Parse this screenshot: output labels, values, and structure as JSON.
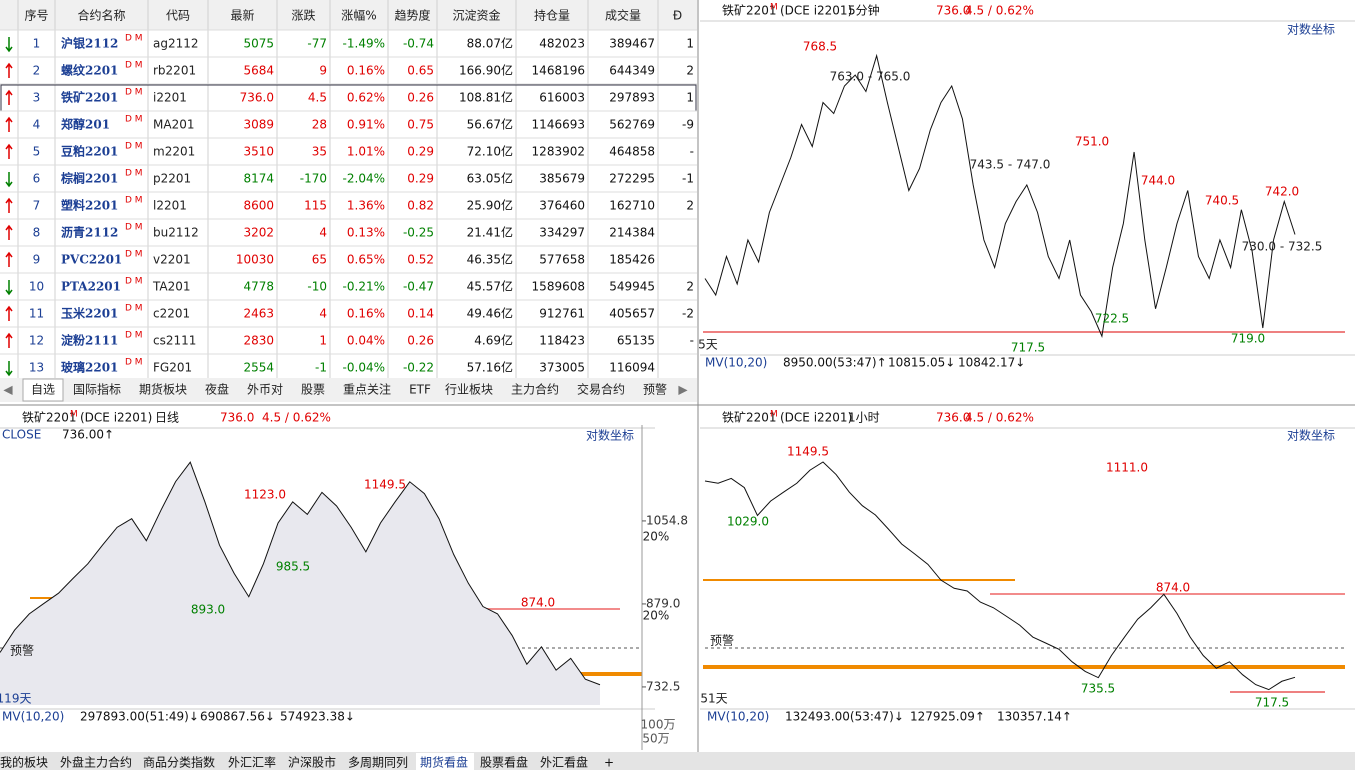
{
  "table": {
    "columns": [
      "序号",
      "合约名称",
      "代码",
      "最新",
      "涨跌",
      "涨幅%",
      "趋势度",
      "沉淀资金",
      "持仓量",
      "成交量",
      "Ð"
    ],
    "badge": "D M",
    "rows": [
      [
        "1",
        "沪银2112",
        "ag2112",
        "5075",
        "-77",
        "-1.49%",
        "-0.74",
        "88.07亿",
        "482023",
        "389467",
        "1"
      ],
      [
        "2",
        "螺纹2201",
        "rb2201",
        "5684",
        "9",
        "0.16%",
        "0.65",
        "166.90亿",
        "1468196",
        "644349",
        "2"
      ],
      [
        "3",
        "铁矿2201",
        "i2201",
        "736.0",
        "4.5",
        "0.62%",
        "0.26",
        "108.81亿",
        "616003",
        "297893",
        "1"
      ],
      [
        "4",
        "郑醇201",
        "MA201",
        "3089",
        "28",
        "0.91%",
        "0.75",
        "56.67亿",
        "1146693",
        "562769",
        "-9"
      ],
      [
        "5",
        "豆粕2201",
        "m2201",
        "3510",
        "35",
        "1.01%",
        "0.29",
        "72.10亿",
        "1283902",
        "464858",
        "-"
      ],
      [
        "6",
        "棕榈2201",
        "p2201",
        "8174",
        "-170",
        "-2.04%",
        "0.29",
        "63.05亿",
        "385679",
        "272295",
        "-1"
      ],
      [
        "7",
        "塑料2201",
        "l2201",
        "8600",
        "115",
        "1.36%",
        "0.82",
        "25.90亿",
        "376460",
        "162710",
        "2"
      ],
      [
        "8",
        "沥青2112",
        "bu2112",
        "3202",
        "4",
        "0.13%",
        "-0.25",
        "21.41亿",
        "334297",
        "214384",
        null
      ],
      [
        "9",
        "PVC2201",
        "v2201",
        "10030",
        "65",
        "0.65%",
        "0.52",
        "46.35亿",
        "577658",
        "185426",
        null
      ],
      [
        "10",
        "PTA2201",
        "TA201",
        "4778",
        "-10",
        "-0.21%",
        "-0.47",
        "45.57亿",
        "1589608",
        "549945",
        "2"
      ],
      [
        "11",
        "玉米2201",
        "c2201",
        "2463",
        "4",
        "0.16%",
        "0.14",
        "49.46亿",
        "912761",
        "405657",
        "-2"
      ],
      [
        "12",
        "淀粉2111",
        "cs2111",
        "2830",
        "1",
        "0.04%",
        "0.26",
        "4.69亿",
        "118423",
        "65135",
        "-"
      ],
      [
        "13",
        "玻璃2201",
        "FG201",
        "2554",
        "-1",
        "-0.04%",
        "-0.22",
        "57.16亿",
        "373005",
        "116094",
        null
      ]
    ]
  },
  "tabs": [
    "自选",
    "国际指标",
    "期货板块",
    "夜盘",
    "外币对",
    "股票",
    "重点关注",
    "ETF",
    "行业板块",
    "主力合约",
    "交易合约",
    "预警"
  ],
  "bottom_tabs": [
    "我的板块",
    "外盘主力合约",
    "商品分类指数",
    "外汇汇率",
    "沪深股市",
    "多周期同列",
    "期货看盘",
    "股票看盘",
    "外汇看盘",
    "+"
  ],
  "panels": [
    {
      "contract": "铁矿2201",
      "badge": "M",
      "exchange": "(DCE i2201)",
      "period": "5分钟",
      "price": "736.0",
      "change": "4.5 / 0.62%",
      "scale_mode": "对数坐标",
      "indicator": [
        "MV(10,20)",
        "8950.00(53:47)↑",
        "10815.05↓",
        "10842.17↓"
      ],
      "annotations": [
        "768.5",
        "763.0 - 765.0",
        "751.0",
        "743.5 - 747.0",
        "744.0",
        "740.5",
        "742.0",
        "730.0 - 732.5",
        "722.5",
        "717.5",
        "719.0",
        "5天"
      ],
      "ylim": [
        715,
        775
      ],
      "log": false,
      "closes": [
        728,
        725,
        732,
        727,
        735,
        731,
        740,
        745,
        750,
        756,
        752,
        760,
        758,
        763,
        765,
        762,
        768.5,
        760,
        752,
        744,
        748,
        755,
        760,
        763,
        757,
        745,
        735,
        730,
        738,
        742,
        745,
        740,
        732,
        728,
        735,
        725,
        722,
        717.5,
        730,
        738,
        751,
        735,
        722.5,
        730,
        738,
        744,
        732,
        728,
        735,
        730,
        740.5,
        733,
        719,
        735,
        742,
        736
      ]
    },
    {
      "contract": "铁矿2201",
      "badge": "M",
      "exchange": "(DCE i2201)",
      "period": "日线",
      "price": "736.0",
      "change": "4.5 / 0.62%",
      "scale_mode": "对数坐标",
      "indicator": [
        "MV(10,20)",
        "297893.00(51:49)↓",
        "690867.56↓",
        "574923.38↓"
      ],
      "close_label": [
        "CLOSE",
        "736.00↑"
      ],
      "annotations": [
        "1123.0",
        "1149.5",
        "985.5",
        "893.0",
        "874.0",
        "预警",
        "119天",
        "20%",
        "20%",
        "100万",
        "50万"
      ],
      "ylim": [
        704,
        1260
      ],
      "log": true,
      "yticks": [
        1054.8,
        {
          "value": 879,
          "label": "879.0"
        },
        732.5
      ],
      "closes": [
        790,
        830,
        860,
        880,
        900,
        930,
        960,
        1000,
        1040,
        1060,
        1010,
        1080,
        1150,
        1200,
        1100,
        1000,
        940,
        893,
        960,
        1050,
        1100,
        1070,
        1123,
        1090,
        1040,
        985.5,
        1050,
        1100,
        1149.5,
        1120,
        1060,
        980,
        920,
        874,
        860,
        820,
        770,
        800,
        760,
        780,
        745,
        736
      ]
    },
    {
      "contract": "铁矿2201",
      "badge": "M",
      "exchange": "(DCE i2201)",
      "period": "1小时",
      "price": "736.0",
      "change": "4.5 / 0.62%",
      "scale_mode": "对数坐标",
      "indicator": [
        "MV(10,20)",
        "132493.00(53:47)↓",
        "127925.09↑",
        "130357.14↑"
      ],
      "annotations": [
        "1111.0",
        "1149.5",
        "1029.0",
        "874.0",
        "735.5",
        "717.5",
        "预警",
        "51天"
      ],
      "ylim": [
        695,
        1203
      ],
      "log": true,
      "closes": [
        1105,
        1100,
        1111,
        1090,
        1029,
        1060,
        1080,
        1100,
        1130,
        1149.5,
        1120,
        1080,
        1050,
        1030,
        1000,
        970,
        950,
        930,
        900,
        885,
        880,
        860,
        850,
        835,
        820,
        800,
        790,
        780,
        760,
        745,
        735.5,
        770,
        800,
        830,
        850,
        874,
        840,
        800,
        770,
        750,
        760,
        740,
        725,
        717.5,
        730,
        736
      ]
    }
  ]
}
